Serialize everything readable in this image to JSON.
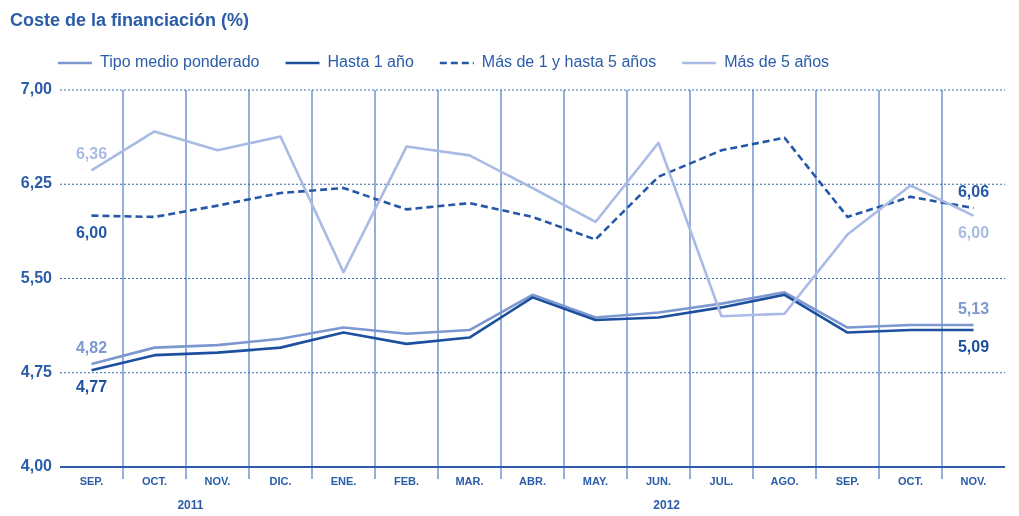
{
  "chart_data": {
    "type": "line",
    "title": "Coste de la financiación (%)",
    "categories": [
      "SEP.",
      "OCT.",
      "NOV.",
      "DIC.",
      "ENE.",
      "FEB.",
      "MAR.",
      "ABR.",
      "MAY.",
      "JUN.",
      "JUL.",
      "AGO.",
      "SEP.",
      "OCT.",
      "NOV."
    ],
    "series": [
      {
        "name": "Tipo medio ponderado",
        "color": "#7d98d0",
        "line_style": "solid",
        "values": [
          4.82,
          4.95,
          4.97,
          5.02,
          5.11,
          5.06,
          5.09,
          5.37,
          5.19,
          5.23,
          5.3,
          5.39,
          5.11,
          5.13,
          5.13
        ],
        "value_labels": [
          "4,82",
          null,
          null,
          null,
          null,
          null,
          null,
          null,
          null,
          null,
          null,
          null,
          null,
          null,
          "5,13"
        ]
      },
      {
        "name": "Hasta 1 año",
        "color": "#1d4f9f",
        "line_style": "solid",
        "values": [
          4.77,
          4.89,
          4.91,
          4.95,
          5.07,
          4.98,
          5.03,
          5.35,
          5.17,
          5.19,
          5.27,
          5.37,
          5.07,
          5.09,
          5.09
        ],
        "value_labels": [
          "4,77",
          null,
          null,
          null,
          null,
          null,
          null,
          null,
          null,
          null,
          null,
          null,
          null,
          null,
          "5,09"
        ]
      },
      {
        "name": "Más de 1 y hasta 5 años",
        "color": "#2457a6",
        "line_style": "dashed",
        "values": [
          6.0,
          5.99,
          6.08,
          6.18,
          6.22,
          6.05,
          6.1,
          5.99,
          5.81,
          6.31,
          6.52,
          6.62,
          5.99,
          6.15,
          6.06
        ],
        "value_labels": [
          "6,00",
          null,
          null,
          null,
          null,
          null,
          null,
          null,
          null,
          null,
          null,
          null,
          null,
          null,
          "6,06"
        ]
      },
      {
        "name": "Más de 5 años",
        "color": "#a9bbe4",
        "line_style": "solid",
        "values": [
          6.36,
          6.67,
          6.52,
          6.63,
          5.55,
          6.55,
          6.48,
          6.22,
          5.95,
          6.58,
          5.2,
          5.22,
          5.85,
          6.24,
          6.0
        ],
        "value_labels": [
          "6,36",
          null,
          null,
          null,
          null,
          null,
          null,
          null,
          null,
          null,
          null,
          null,
          null,
          null,
          "6,00"
        ]
      }
    ],
    "ylim": [
      4,
      7
    ],
    "yticks": [
      {
        "value": 4,
        "label": "4,00"
      },
      {
        "value": 4.75,
        "label": "4,75"
      },
      {
        "value": 5.5,
        "label": "5,50"
      },
      {
        "value": 6.25,
        "label": "6,25"
      },
      {
        "value": 7,
        "label": "7,00"
      }
    ],
    "grid": true,
    "legend": "top",
    "annotations": [
      "2011",
      "2012"
    ]
  }
}
